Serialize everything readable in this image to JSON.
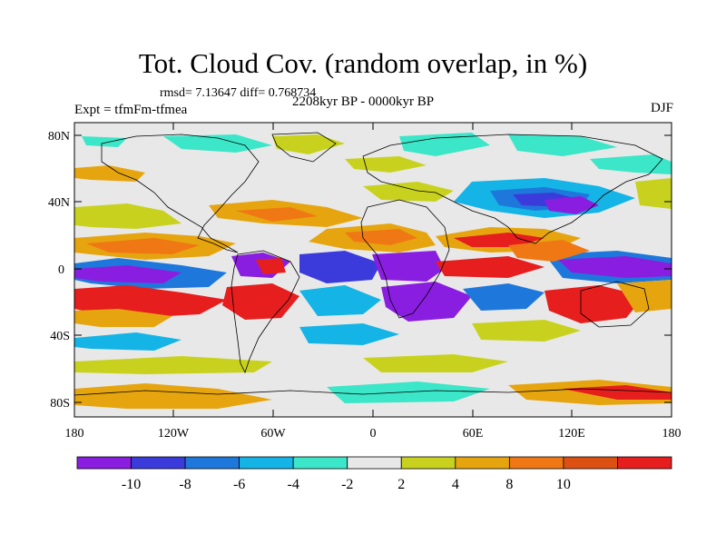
{
  "title": "Tot. Cloud Cov. (random overlap, in %)",
  "stats": "rmsd= 7.13647 diff= 0.768734",
  "experiment": "Expt = tfmFm-tfmea",
  "period": "2208kyr BP - 0000kyr BP",
  "season": "DJF",
  "lat_ticks": [
    "80N",
    "40N",
    "0",
    "40S",
    "80S"
  ],
  "lon_ticks": [
    "180",
    "120W",
    "60W",
    "0",
    "60E",
    "120E",
    "180"
  ],
  "colorbar": {
    "labels": [
      "-10",
      "-8",
      "-6",
      "-4",
      "-2",
      "2",
      "4",
      "8",
      "10"
    ],
    "colors": [
      "#8a1ee0",
      "#3b3bdc",
      "#1e78dc",
      "#14b4e6",
      "#3ce6c8",
      "#e8e8e8",
      "#c8d21e",
      "#e6a50f",
      "#f07814",
      "#dc5014",
      "#e61e1e"
    ]
  }
}
